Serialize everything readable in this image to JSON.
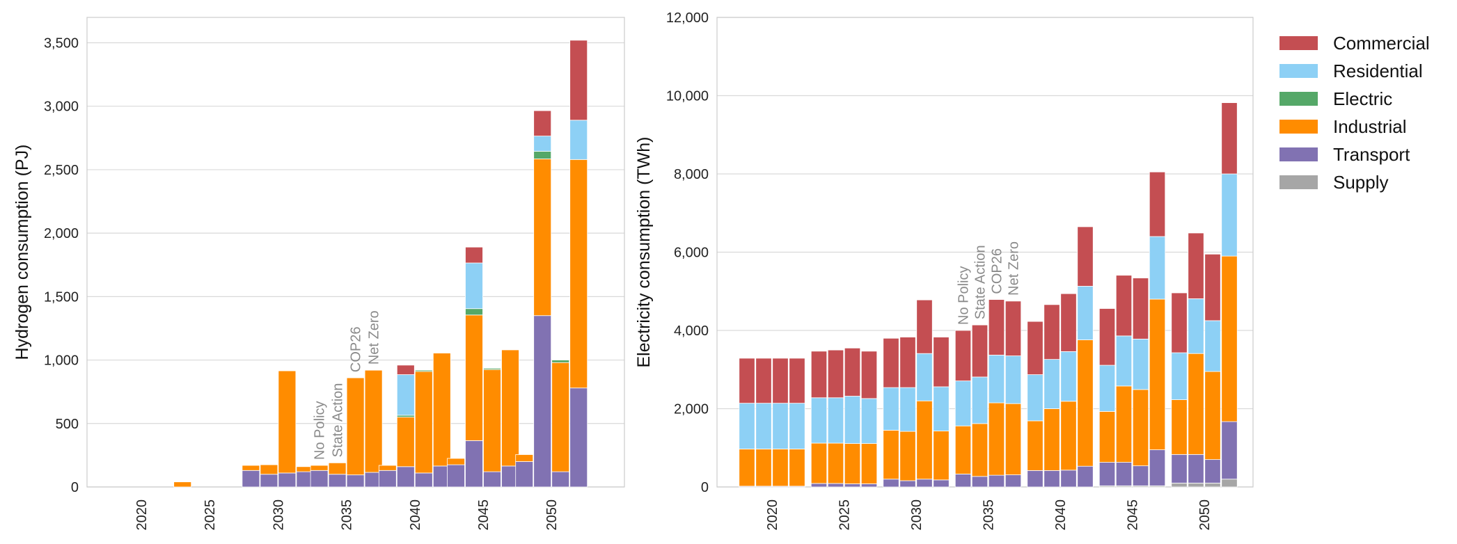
{
  "colors": {
    "Commercial": "#c44e52",
    "Residential": "#8dd0f5",
    "Electric": "#55a868",
    "Industrial": "#ff8c00",
    "Transport": "#8172b2",
    "Supply": "#a6a6a6"
  },
  "legend": {
    "entries": [
      "Commercial",
      "Residential",
      "Electric",
      "Industrial",
      "Transport",
      "Supply"
    ]
  },
  "chart_data": [
    {
      "type": "bar",
      "stacked": true,
      "ylabel": "Hydrogen consumption (PJ)",
      "ylim": [
        0,
        3700
      ],
      "yticks": [
        0,
        500,
        1000,
        1500,
        2000,
        2500,
        3000,
        3500
      ],
      "ytick_labels": [
        "0",
        "500",
        "1,000",
        "1,500",
        "2,000",
        "2,500",
        "3,000",
        "3,500"
      ],
      "categories": [
        "2020",
        "2025",
        "2030",
        "2035",
        "2040",
        "2045",
        "2050"
      ],
      "scenarios": [
        "No Policy",
        "State Action",
        "COP26",
        "Net Zero"
      ],
      "scenario_annotation_year": "2035",
      "grid": true,
      "series": [
        {
          "name": "Supply",
          "values": [
            [
              0,
              0,
              0,
              0
            ],
            [
              0,
              0,
              0,
              0
            ],
            [
              0,
              0,
              0,
              0
            ],
            [
              0,
              0,
              0,
              0
            ],
            [
              0,
              0,
              0,
              0
            ],
            [
              0,
              0,
              0,
              0
            ],
            [
              0,
              0,
              0,
              0
            ]
          ]
        },
        {
          "name": "Transport",
          "values": [
            [
              0,
              0,
              0,
              0
            ],
            [
              0,
              0,
              0,
              0
            ],
            [
              130,
              100,
              110,
              120
            ],
            [
              130,
              100,
              95,
              115
            ],
            [
              130,
              160,
              110,
              165
            ],
            [
              175,
              365,
              120,
              165
            ],
            [
              200,
              1350,
              120,
              780
            ]
          ]
        },
        {
          "name": "Industrial",
          "values": [
            [
              0,
              0,
              0,
              0
            ],
            [
              40,
              0,
              0,
              0
            ],
            [
              40,
              75,
              805,
              40
            ],
            [
              40,
              90,
              765,
              805
            ],
            [
              40,
              390,
              800,
              890
            ],
            [
              50,
              990,
              805,
              915
            ],
            [
              55,
              1235,
              860,
              1800
            ]
          ]
        },
        {
          "name": "Electric",
          "values": [
            [
              0,
              0,
              0,
              0
            ],
            [
              0,
              0,
              0,
              0
            ],
            [
              0,
              0,
              0,
              0
            ],
            [
              0,
              0,
              0,
              0
            ],
            [
              0,
              15,
              10,
              0
            ],
            [
              0,
              50,
              10,
              0
            ],
            [
              0,
              60,
              20,
              0
            ]
          ]
        },
        {
          "name": "Residential",
          "values": [
            [
              0,
              0,
              0,
              0
            ],
            [
              0,
              0,
              0,
              0
            ],
            [
              0,
              0,
              0,
              0
            ],
            [
              0,
              0,
              0,
              0
            ],
            [
              0,
              320,
              0,
              0
            ],
            [
              0,
              360,
              0,
              0
            ],
            [
              0,
              120,
              0,
              310
            ]
          ]
        },
        {
          "name": "Commercial",
          "values": [
            [
              0,
              0,
              0,
              0
            ],
            [
              0,
              0,
              0,
              0
            ],
            [
              0,
              0,
              0,
              0
            ],
            [
              0,
              0,
              0,
              0
            ],
            [
              0,
              75,
              0,
              0
            ],
            [
              0,
              125,
              0,
              0
            ],
            [
              0,
              200,
              0,
              630
            ]
          ]
        }
      ]
    },
    {
      "type": "bar",
      "stacked": true,
      "ylabel": "Electricity consumption (TWh)",
      "ylim": [
        0,
        12000
      ],
      "yticks": [
        0,
        2000,
        4000,
        6000,
        8000,
        10000,
        12000
      ],
      "ytick_labels": [
        "0",
        "2,000",
        "4,000",
        "6,000",
        "8,000",
        "10,000",
        "12,000"
      ],
      "categories": [
        "2020",
        "2025",
        "2030",
        "2035",
        "2040",
        "2045",
        "2050"
      ],
      "scenarios": [
        "No Policy",
        "State Action",
        "COP26",
        "Net Zero"
      ],
      "scenario_annotation_year": "2035",
      "grid": true,
      "series": [
        {
          "name": "Supply",
          "values": [
            [
              0,
              0,
              0,
              0
            ],
            [
              0,
              0,
              0,
              0
            ],
            [
              0,
              0,
              0,
              0
            ],
            [
              0,
              0,
              0,
              0
            ],
            [
              0,
              0,
              0,
              0
            ],
            [
              30,
              30,
              30,
              30
            ],
            [
              100,
              100,
              100,
              200
            ]
          ]
        },
        {
          "name": "Transport",
          "values": [
            [
              20,
              20,
              20,
              20
            ],
            [
              90,
              90,
              80,
              80
            ],
            [
              200,
              160,
              200,
              180
            ],
            [
              330,
              270,
              300,
              310
            ],
            [
              420,
              420,
              430,
              530
            ],
            [
              600,
              600,
              510,
              920
            ],
            [
              730,
              730,
              600,
              1470
            ]
          ]
        },
        {
          "name": "Industrial",
          "values": [
            [
              950,
              950,
              950,
              950
            ],
            [
              1030,
              1030,
              1030,
              1030
            ],
            [
              1250,
              1260,
              2000,
              1250
            ],
            [
              1230,
              1350,
              1850,
              1820
            ],
            [
              1270,
              1580,
              1760,
              3230
            ],
            [
              1300,
              1950,
              1950,
              3850
            ],
            [
              1400,
              2580,
              2250,
              4230
            ]
          ]
        },
        {
          "name": "Electric",
          "values": [
            [
              0,
              0,
              0,
              0
            ],
            [
              0,
              0,
              0,
              0
            ],
            [
              0,
              0,
              0,
              0
            ],
            [
              0,
              0,
              0,
              0
            ],
            [
              0,
              0,
              0,
              0
            ],
            [
              0,
              0,
              0,
              0
            ],
            [
              0,
              0,
              0,
              0
            ]
          ]
        },
        {
          "name": "Residential",
          "values": [
            [
              1170,
              1170,
              1170,
              1170
            ],
            [
              1160,
              1160,
              1210,
              1150
            ],
            [
              1090,
              1120,
              1210,
              1130
            ],
            [
              1150,
              1190,
              1220,
              1220
            ],
            [
              1180,
              1260,
              1270,
              1370
            ],
            [
              1180,
              1280,
              1290,
              1600
            ],
            [
              1200,
              1400,
              1300,
              2100
            ]
          ]
        },
        {
          "name": "Commercial",
          "values": [
            [
              1150,
              1150,
              1150,
              1150
            ],
            [
              1190,
              1220,
              1230,
              1210
            ],
            [
              1260,
              1290,
              1370,
              1270
            ],
            [
              1290,
              1330,
              1420,
              1400
            ],
            [
              1360,
              1400,
              1480,
              1520
            ],
            [
              1450,
              1550,
              1560,
              1650
            ],
            [
              1530,
              1680,
              1700,
              1820
            ]
          ]
        }
      ]
    }
  ]
}
